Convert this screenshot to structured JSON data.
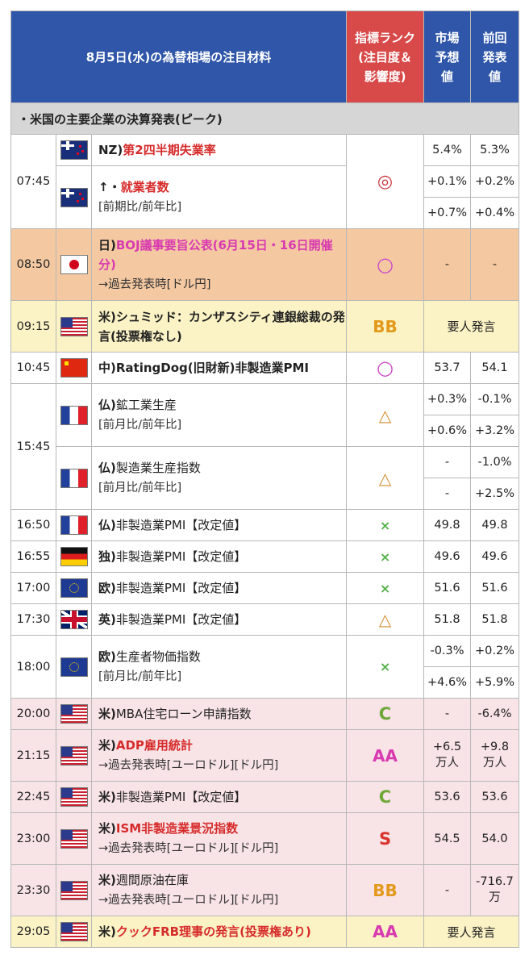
{
  "header": {
    "title": "8月5日(水)の為替相場の注目材料",
    "rank": "指標ランク(注目度＆影響度)",
    "forecast": "市場予想値",
    "previous": "前回発表値"
  },
  "section": "・米国の主要企業の決算発表(ピーク)",
  "rows": {
    "r0745": {
      "time": "07:45",
      "e1": {
        "country": "NZ)",
        "name": "第2四半期失業率",
        "forecast": "5.4%",
        "previous": "5.3%"
      },
      "e2": {
        "country": "↑・",
        "name": "就業者数",
        "note": "[前期比/前年比]",
        "f1": "+0.1%",
        "p1": "+0.2%",
        "f2": "+0.7%",
        "p2": "+0.4%"
      },
      "rank": "◎"
    },
    "r0850": {
      "time": "08:50",
      "country": "日)",
      "name": "BOJ議事要旨公表(6月15日・16日開催分)",
      "note_pre": "→過去発表時[",
      "link1": "ドル円",
      "note_post": "]",
      "rank": "○",
      "forecast": "-",
      "previous": "-"
    },
    "r0915": {
      "time": "09:15",
      "country": "米)",
      "name": "シュミッド：カンザスシティ連銀総裁の発言(投票権なし)",
      "rank": "BB",
      "speech": "要人発言"
    },
    "r1045": {
      "time": "10:45",
      "country": "中)",
      "name": "RatingDog(旧財新)非製造業PMI",
      "rank": "○",
      "forecast": "53.7",
      "previous": "54.1"
    },
    "r1545": {
      "time": "15:45",
      "e1": {
        "country": "仏)",
        "name": "鉱工業生産",
        "note": "[前月比/前年比]",
        "rank": "△",
        "f1": "+0.3%",
        "p1": "-0.1%",
        "f2": "+0.6%",
        "p2": "+3.2%"
      },
      "e2": {
        "country": "仏)",
        "name": "製造業生産指数",
        "note": "[前月比/前年比]",
        "rank": "△",
        "f1": "-",
        "p1": "-1.0%",
        "f2": "-",
        "p2": "+2.5%"
      }
    },
    "r1650": {
      "time": "16:50",
      "country": "仏)",
      "name": "非製造業PMI【改定値】",
      "rank": "×",
      "forecast": "49.8",
      "previous": "49.8"
    },
    "r1655": {
      "time": "16:55",
      "country": "独)",
      "name": "非製造業PMI【改定値】",
      "rank": "×",
      "forecast": "49.6",
      "previous": "49.6"
    },
    "r1700": {
      "time": "17:00",
      "country": "欧)",
      "name": "非製造業PMI【改定値】",
      "rank": "×",
      "forecast": "51.6",
      "previous": "51.6"
    },
    "r1730": {
      "time": "17:30",
      "country": "英)",
      "name": "非製造業PMI【改定値】",
      "rank": "△",
      "forecast": "51.8",
      "previous": "51.8"
    },
    "r1800": {
      "time": "18:00",
      "country": "欧)",
      "name": "生産者物価指数",
      "note": "[前月比/前年比]",
      "rank": "×",
      "f1": "-0.3%",
      "p1": "+0.2%",
      "f2": "+4.6%",
      "p2": "+5.9%"
    },
    "r2000": {
      "time": "20:00",
      "country": "米)",
      "name": "MBA住宅ローン申請指数",
      "rank": "C",
      "forecast": "-",
      "previous": "-6.4%"
    },
    "r2115": {
      "time": "21:15",
      "country": "米)",
      "name": "ADP雇用統計",
      "note_pre": "→過去発表時[",
      "link1": "ユーロドル",
      "mid": "][",
      "link2": "ドル円",
      "note_post": "]",
      "rank": "AA",
      "forecast": "+6.5万人",
      "previous": "+9.8万人"
    },
    "r2245": {
      "time": "22:45",
      "country": "米)",
      "name": "非製造業PMI【改定値】",
      "rank": "C",
      "forecast": "53.6",
      "previous": "53.6"
    },
    "r2300": {
      "time": "23:00",
      "country": "米)",
      "name": "ISM非製造業景況指数",
      "note_pre": "→過去発表時[",
      "link1": "ユーロドル",
      "mid": "][",
      "link2": "ドル円",
      "note_post": "]",
      "rank": "S",
      "forecast": "54.5",
      "previous": "54.0"
    },
    "r2330": {
      "time": "23:30",
      "country": "米)",
      "name": "週間原油在庫",
      "note_pre": "→過去発表時[",
      "link1": "ユーロドル",
      "mid": "][",
      "link2": "ドル円",
      "note_post": "]",
      "rank": "BB",
      "forecast": "-",
      "previous": "-716.7万"
    },
    "r2905": {
      "time": "29:05",
      "country": "米)",
      "name": "クックFRB理事の発言(投票権あり)",
      "rank": "AA",
      "speech": "要人発言"
    }
  },
  "flags": {
    "nz": "nz-flag-icon",
    "jp": "japan-flag-icon",
    "us": "us-flag-icon",
    "cn": "china-flag-icon",
    "fr": "france-flag-icon",
    "de": "germany-flag-icon",
    "eu": "eu-flag-icon",
    "uk": "uk-flag-icon"
  },
  "colors": {
    "header": "#2f56a8",
    "rank_header": "#d84a4a",
    "boj_row": "#f4c9a2",
    "speech_row": "#fbf3c5",
    "us_row": "#f8e3e7"
  }
}
